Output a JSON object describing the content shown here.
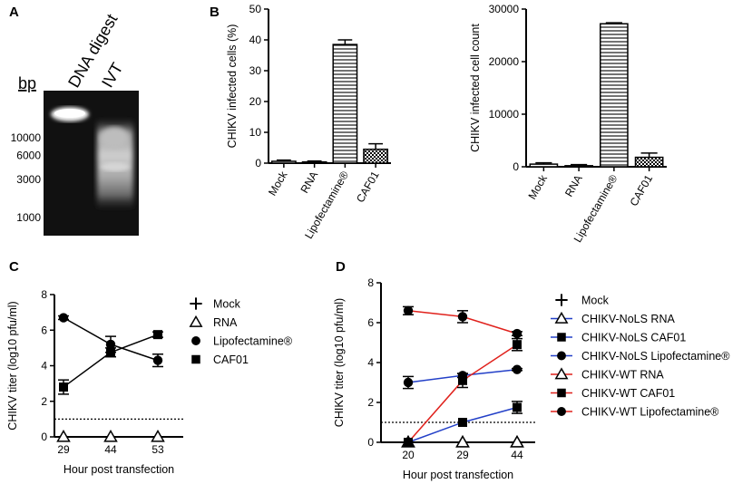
{
  "panel_letters": [
    "A",
    "B",
    "C",
    "D"
  ],
  "gel": {
    "bp_label": "bp",
    "lane_labels": [
      "DNA digest",
      "IVT"
    ],
    "ladder": [
      {
        "bp": 10000,
        "label": "10000"
      },
      {
        "bp": 6000,
        "label": "6000"
      },
      {
        "bp": 3000,
        "label": "3000"
      },
      {
        "bp": 1000,
        "label": "1000"
      }
    ]
  },
  "colors": {
    "black": "#000000",
    "blue": "#2340c8",
    "red": "#e0211c"
  },
  "chart_data": [
    {
      "id": "B1",
      "type": "bar",
      "categories": [
        "Mock",
        "RNA",
        "Lipofectamine®",
        "CAF01"
      ],
      "values": [
        0.6,
        0.4,
        38.5,
        4.5
      ],
      "errors": [
        0.4,
        0.3,
        1.5,
        1.8
      ],
      "patterns": [
        "plain",
        "plain",
        "hlines",
        "check"
      ],
      "ylabel": "CHIKV infected cells (%)",
      "ylim": [
        0,
        50
      ],
      "yticks": [
        0,
        10,
        20,
        30,
        40,
        50
      ]
    },
    {
      "id": "B2",
      "type": "bar",
      "categories": [
        "Mock",
        "RNA",
        "Lipofectamine®",
        "CAF01"
      ],
      "values": [
        500,
        200,
        27200,
        1800
      ],
      "errors": [
        250,
        200,
        200,
        800
      ],
      "patterns": [
        "plain",
        "plain",
        "hlines",
        "check"
      ],
      "ylabel": "CHIKV infected cell count",
      "ylim": [
        0,
        30000
      ],
      "yticks": [
        0,
        10000,
        20000,
        30000
      ]
    },
    {
      "id": "C",
      "type": "line",
      "x": [
        "29",
        "44",
        "53"
      ],
      "xlabel": "Hour post transfection",
      "ylabel": "CHIKV titer (log10 pfu/ml)",
      "ylim": [
        0,
        8
      ],
      "yticks": [
        0,
        2,
        4,
        6,
        8
      ],
      "detection_limit": 1,
      "series": [
        {
          "name": "Mock",
          "marker": "plus",
          "color": "#000000",
          "values": [
            null,
            null,
            null
          ],
          "errors": [
            0,
            0,
            0
          ],
          "line": false
        },
        {
          "name": "RNA",
          "marker": "triangle",
          "color": "#000000",
          "values": [
            0,
            0,
            0
          ],
          "errors": [
            0,
            0,
            0
          ],
          "line": false
        },
        {
          "name": "Lipofectamine®",
          "marker": "circle",
          "color": "#000000",
          "values": [
            6.7,
            5.2,
            4.3
          ],
          "errors": [
            0.1,
            0.45,
            0.35
          ],
          "line": true
        },
        {
          "name": "CAF01",
          "marker": "square",
          "color": "#000000",
          "values": [
            2.8,
            4.75,
            5.75
          ],
          "errors": [
            0.4,
            0.25,
            0.15
          ],
          "line": true
        }
      ]
    },
    {
      "id": "D",
      "type": "line",
      "x": [
        "20",
        "29",
        "44"
      ],
      "xlabel": "Hour post transfection",
      "ylabel": "CHIKV titer (log10 pfu/ml)",
      "ylim": [
        0,
        8
      ],
      "yticks": [
        0,
        2,
        4,
        6,
        8
      ],
      "detection_limit": 1,
      "series": [
        {
          "name": "Mock",
          "marker": "plus",
          "color": "#000000",
          "values": [
            null,
            null,
            null
          ],
          "errors": [
            0,
            0,
            0
          ],
          "line": false
        },
        {
          "name": "CHIKV-NoLS RNA",
          "marker": "triangle",
          "color": "#2340c8",
          "values": [
            0,
            0,
            0
          ],
          "errors": [
            0,
            0,
            0
          ],
          "line": false
        },
        {
          "name": "CHIKV-NoLS CAF01",
          "marker": "square",
          "color": "#2340c8",
          "values": [
            0,
            1.0,
            1.75
          ],
          "errors": [
            0,
            0,
            0.3
          ],
          "line": true
        },
        {
          "name": "CHIKV-NoLS Lipofectamine®",
          "marker": "circle",
          "color": "#2340c8",
          "values": [
            3.0,
            3.35,
            3.65
          ],
          "errors": [
            0.3,
            0.1,
            0.05
          ],
          "line": true
        },
        {
          "name": "CHIKV-WT RNA",
          "marker": "triangle",
          "color": "#e0211c",
          "values": [
            0,
            0,
            0
          ],
          "errors": [
            0,
            0,
            0
          ],
          "line": false
        },
        {
          "name": "CHIKV-WT CAF01",
          "marker": "square",
          "color": "#e0211c",
          "values": [
            0,
            3.1,
            4.9
          ],
          "errors": [
            0,
            0.35,
            0.3
          ],
          "line": true
        },
        {
          "name": "CHIKV-WT Lipofectamine®",
          "marker": "circle",
          "color": "#e0211c",
          "values": [
            6.6,
            6.3,
            5.45
          ],
          "errors": [
            0.2,
            0.3,
            0.1
          ],
          "line": true
        }
      ]
    }
  ]
}
